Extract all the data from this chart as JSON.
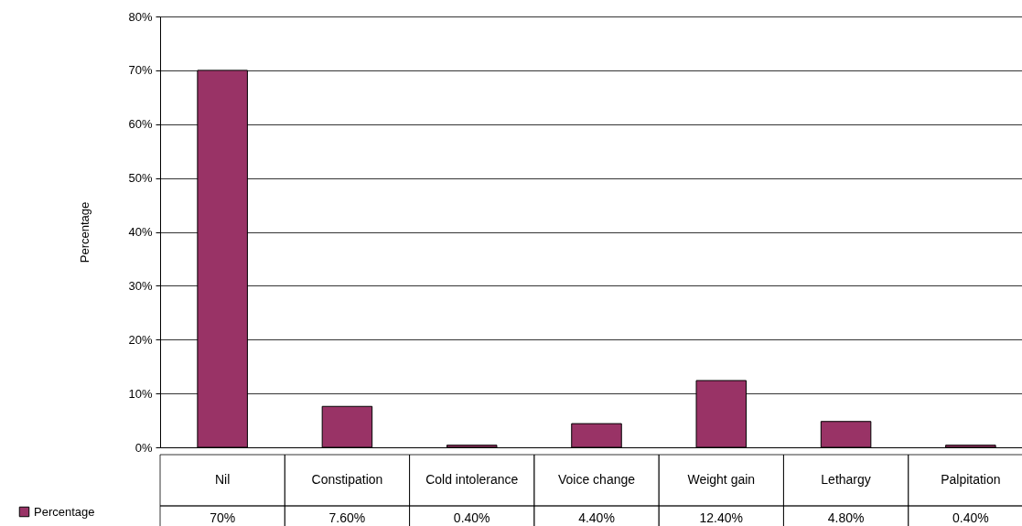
{
  "chart_data": {
    "type": "bar",
    "ylabel": "Percentage",
    "categories": [
      "Nil",
      "Constipation",
      "Cold intolerance",
      "Voice change",
      "Weight gain",
      "Lethargy",
      "Palpitation"
    ],
    "series": [
      {
        "name": "Percentage",
        "color": "#993366",
        "values": [
          70,
          7.6,
          0.4,
          4.4,
          12.4,
          4.8,
          0.4
        ],
        "value_labels": [
          "70%",
          "7.60%",
          "0.40%",
          "4.40%",
          "12.40%",
          "4.80%",
          "0.40%"
        ]
      }
    ],
    "ylim": [
      0,
      80
    ],
    "yticks": [
      {
        "value": 0,
        "label": "0%"
      },
      {
        "value": 10,
        "label": "10%"
      },
      {
        "value": 20,
        "label": "20%"
      },
      {
        "value": 30,
        "label": "30%"
      },
      {
        "value": 40,
        "label": "40%"
      },
      {
        "value": 50,
        "label": "50%"
      },
      {
        "value": 60,
        "label": "60%"
      },
      {
        "value": 70,
        "label": "70%"
      },
      {
        "value": 80,
        "label": "80%"
      }
    ],
    "grid": "y",
    "legend": "bottom left"
  }
}
